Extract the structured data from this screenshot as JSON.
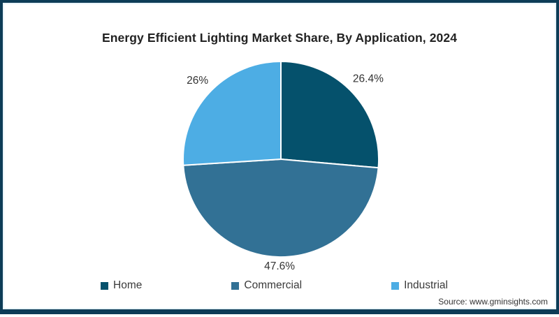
{
  "chart_data": {
    "type": "pie",
    "title": "Energy Efficient Lighting Market Share, By Application, 2024",
    "slices": [
      {
        "label": "Home",
        "value": 26.4,
        "display": "26.4%",
        "color": "#05516c",
        "label_r": 1.21
      },
      {
        "label": "Commercial",
        "value": 47.6,
        "display": "47.6%",
        "color": "#327195",
        "label_r": 1.1
      },
      {
        "label": "Industrial",
        "value": 26,
        "display": "26%",
        "color": "#4dade4",
        "label_r": 1.17
      }
    ],
    "start_angle_deg": 0,
    "direction": "clockwise",
    "legend_position": "bottom",
    "slice_label_color": "#333333",
    "slice_divider_color": "#ffffff",
    "legend_text_color": "#3a3a3a"
  },
  "source": {
    "text": "Source: www.gminsights.com"
  },
  "frame": {
    "border_color": "#0d3c57",
    "background": "#ffffff"
  }
}
